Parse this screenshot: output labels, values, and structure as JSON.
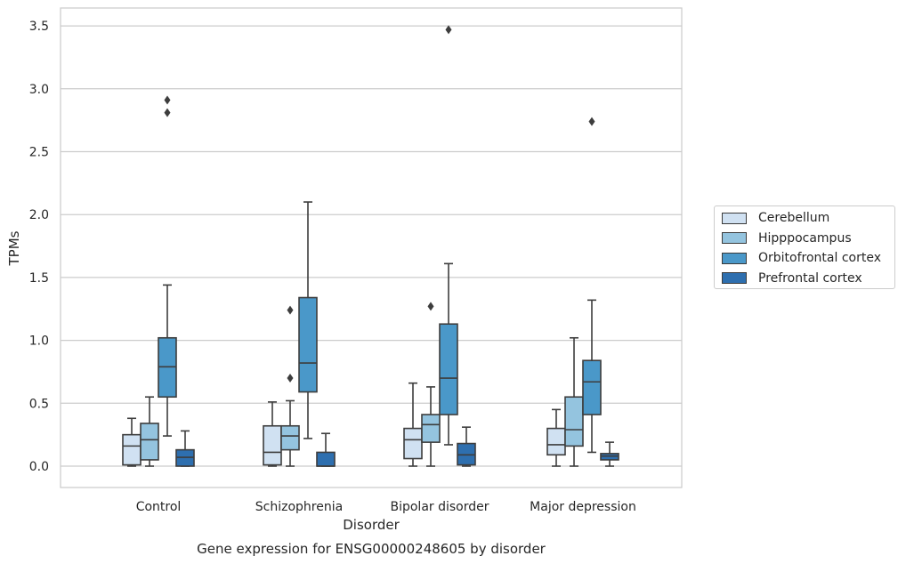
{
  "chart_data": {
    "type": "box",
    "caption": "Gene expression for ENSG00000248605 by disorder",
    "xlabel": "Disorder",
    "ylabel": "TPMs",
    "ylim": [
      -0.17,
      3.65
    ],
    "yticks": [
      0.0,
      0.5,
      1.0,
      1.5,
      2.0,
      2.5,
      3.0,
      3.5
    ],
    "ytick_labels": [
      "0.0",
      "0.5",
      "1.0",
      "1.5",
      "2.0",
      "2.5",
      "3.0",
      "3.5"
    ],
    "grid": "horizontal",
    "legend_position": "right",
    "categories": [
      "Control",
      "Schizophrenia",
      "Bipolar disorder",
      "Major depression"
    ],
    "series": [
      {
        "name": "Cerebellum",
        "color": "#d0e1f2",
        "boxes": [
          {
            "whislo": 0.0,
            "q1": 0.01,
            "med": 0.16,
            "q3": 0.25,
            "whishi": 0.38,
            "fliers": []
          },
          {
            "whislo": 0.0,
            "q1": 0.01,
            "med": 0.11,
            "q3": 0.32,
            "whishi": 0.51,
            "fliers": []
          },
          {
            "whislo": 0.0,
            "q1": 0.06,
            "med": 0.21,
            "q3": 0.3,
            "whishi": 0.66,
            "fliers": []
          },
          {
            "whislo": 0.0,
            "q1": 0.09,
            "med": 0.17,
            "q3": 0.3,
            "whishi": 0.45,
            "fliers": []
          }
        ]
      },
      {
        "name": "Hipppocampus",
        "color": "#94c4df",
        "boxes": [
          {
            "whislo": 0.0,
            "q1": 0.05,
            "med": 0.21,
            "q3": 0.34,
            "whishi": 0.55,
            "fliers": []
          },
          {
            "whislo": 0.0,
            "q1": 0.13,
            "med": 0.24,
            "q3": 0.32,
            "whishi": 0.52,
            "fliers": [
              0.7,
              1.24
            ]
          },
          {
            "whislo": 0.0,
            "q1": 0.19,
            "med": 0.33,
            "q3": 0.41,
            "whishi": 0.63,
            "fliers": [
              1.27
            ]
          },
          {
            "whislo": 0.0,
            "q1": 0.16,
            "med": 0.29,
            "q3": 0.55,
            "whishi": 1.02,
            "fliers": []
          }
        ]
      },
      {
        "name": "Orbitofrontal cortex",
        "color": "#4a98c9",
        "boxes": [
          {
            "whislo": 0.24,
            "q1": 0.55,
            "med": 0.79,
            "q3": 1.02,
            "whishi": 1.44,
            "fliers": [
              2.81,
              2.91
            ]
          },
          {
            "whislo": 0.22,
            "q1": 0.59,
            "med": 0.82,
            "q3": 1.34,
            "whishi": 2.1,
            "fliers": []
          },
          {
            "whislo": 0.17,
            "q1": 0.41,
            "med": 0.7,
            "q3": 1.13,
            "whishi": 1.61,
            "fliers": [
              3.47
            ]
          },
          {
            "whislo": 0.11,
            "q1": 0.41,
            "med": 0.67,
            "q3": 0.84,
            "whishi": 1.32,
            "fliers": [
              2.74
            ]
          }
        ]
      },
      {
        "name": "Prefrontal cortex",
        "color": "#2e6faf",
        "boxes": [
          {
            "whislo": 0.0,
            "q1": 0.0,
            "med": 0.07,
            "q3": 0.13,
            "whishi": 0.28,
            "fliers": []
          },
          {
            "whislo": 0.0,
            "q1": 0.0,
            "med": 0.0,
            "q3": 0.11,
            "whishi": 0.26,
            "fliers": []
          },
          {
            "whislo": 0.0,
            "q1": 0.01,
            "med": 0.09,
            "q3": 0.18,
            "whishi": 0.31,
            "fliers": []
          },
          {
            "whislo": 0.0,
            "q1": 0.05,
            "med": 0.08,
            "q3": 0.1,
            "whishi": 0.19,
            "fliers": []
          }
        ]
      }
    ]
  }
}
